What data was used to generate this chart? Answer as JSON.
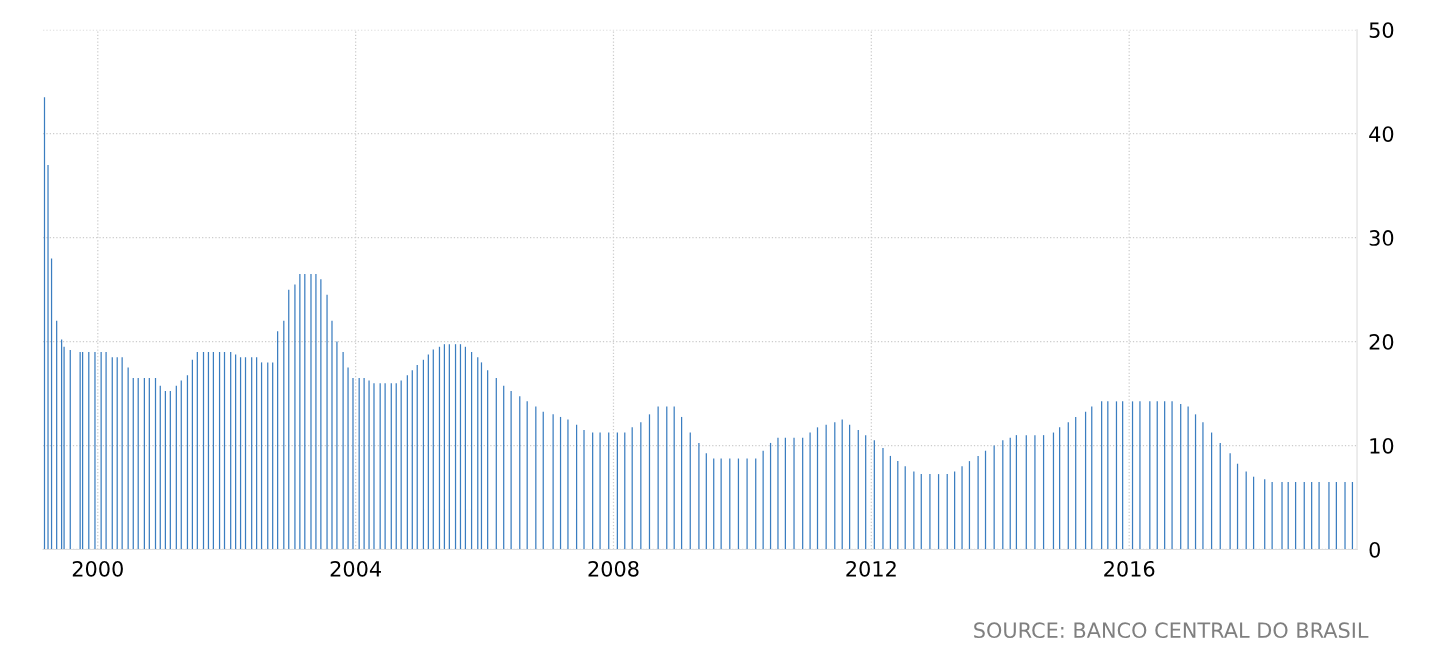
{
  "chart_data": {
    "type": "bar",
    "color": "#3a7dc0",
    "x": [
      "1999-03-05",
      "1999-03-25",
      "1999-04-14",
      "1999-05-13",
      "1999-06-10",
      "1999-06-24",
      "1999-07-29",
      "1999-09-23",
      "1999-10-07",
      "1999-11-11",
      "1999-12-16",
      "2000-01-20",
      "2000-02-17",
      "2000-03-23",
      "2000-04-20",
      "2000-05-18",
      "2000-06-21",
      "2000-07-20",
      "2000-08-17",
      "2000-09-21",
      "2000-10-19",
      "2000-11-23",
      "2000-12-20",
      "2001-01-18",
      "2001-02-15",
      "2001-03-21",
      "2001-04-18",
      "2001-05-23",
      "2001-06-20",
      "2001-07-18",
      "2001-08-22",
      "2001-09-19",
      "2001-10-17",
      "2001-11-21",
      "2001-12-19",
      "2002-01-23",
      "2002-02-20",
      "2002-03-20",
      "2002-04-17",
      "2002-05-22",
      "2002-06-19",
      "2002-07-17",
      "2002-08-21",
      "2002-09-18",
      "2002-10-16",
      "2002-11-20",
      "2002-12-18",
      "2003-01-22",
      "2003-02-19",
      "2003-03-19",
      "2003-04-23",
      "2003-05-21",
      "2003-06-18",
      "2003-07-23",
      "2003-08-20",
      "2003-09-17",
      "2003-10-22",
      "2003-11-19",
      "2003-12-17",
      "2004-01-21",
      "2004-02-18",
      "2004-03-17",
      "2004-04-14",
      "2004-05-19",
      "2004-06-16",
      "2004-07-21",
      "2004-08-18",
      "2004-09-15",
      "2004-10-20",
      "2004-11-17",
      "2004-12-15",
      "2005-01-19",
      "2005-02-16",
      "2005-03-16",
      "2005-04-20",
      "2005-05-18",
      "2005-06-15",
      "2005-07-20",
      "2005-08-17",
      "2005-09-14",
      "2005-10-19",
      "2005-11-23",
      "2005-12-14",
      "2006-01-18",
      "2006-03-08",
      "2006-04-19",
      "2006-05-31",
      "2006-07-19",
      "2006-08-30",
      "2006-10-18",
      "2006-11-29",
      "2007-01-24",
      "2007-03-07",
      "2007-04-18",
      "2007-06-06",
      "2007-07-18",
      "2007-09-05",
      "2007-10-17",
      "2007-12-05",
      "2008-01-23",
      "2008-03-05",
      "2008-04-16",
      "2008-06-04",
      "2008-07-23",
      "2008-09-10",
      "2008-10-29",
      "2008-12-10",
      "2009-01-21",
      "2009-03-11",
      "2009-04-29",
      "2009-06-10",
      "2009-07-22",
      "2009-09-02",
      "2009-10-21",
      "2009-12-09",
      "2010-01-27",
      "2010-03-17",
      "2010-04-28",
      "2010-06-09",
      "2010-07-21",
      "2010-09-01",
      "2010-10-20",
      "2010-12-08",
      "2011-01-19",
      "2011-03-02",
      "2011-04-20",
      "2011-06-08",
      "2011-07-20",
      "2011-08-31",
      "2011-10-19",
      "2011-11-30",
      "2012-01-18",
      "2012-03-07",
      "2012-04-18",
      "2012-05-30",
      "2012-07-11",
      "2012-08-29",
      "2012-10-10",
      "2012-11-28",
      "2013-01-16",
      "2013-03-06",
      "2013-04-17",
      "2013-05-29",
      "2013-07-10",
      "2013-08-28",
      "2013-10-09",
      "2013-11-27",
      "2014-01-15",
      "2014-02-26",
      "2014-04-02",
      "2014-05-28",
      "2014-07-16",
      "2014-09-03",
      "2014-10-29",
      "2014-12-03",
      "2015-01-21",
      "2015-03-04",
      "2015-04-29",
      "2015-06-03",
      "2015-07-29",
      "2015-09-02",
      "2015-10-21",
      "2015-11-25",
      "2016-01-20",
      "2016-03-02",
      "2016-04-27",
      "2016-06-08",
      "2016-07-20",
      "2016-08-31",
      "2016-10-19",
      "2016-11-30",
      "2017-01-11",
      "2017-02-22",
      "2017-04-12",
      "2017-05-31",
      "2017-07-26",
      "2017-09-06",
      "2017-10-25",
      "2017-12-06",
      "2018-02-07",
      "2018-03-21",
      "2018-05-16",
      "2018-06-20",
      "2018-08-01",
      "2018-09-19",
      "2018-10-31",
      "2018-12-12",
      "2019-02-06",
      "2019-03-20",
      "2019-05-08",
      "2019-06-19"
    ],
    "values": [
      43.5,
      37,
      28,
      22,
      20.2,
      19.5,
      19.2,
      19,
      19,
      19,
      19,
      19,
      19,
      18.5,
      18.5,
      18.5,
      17.5,
      16.5,
      16.5,
      16.5,
      16.5,
      16.5,
      15.75,
      15.25,
      15.25,
      15.75,
      16.25,
      16.75,
      18.25,
      19,
      19,
      19,
      19,
      19,
      19,
      19,
      18.75,
      18.5,
      18.5,
      18.5,
      18.5,
      18,
      18,
      18,
      21,
      22,
      25,
      25.5,
      26.5,
      26.5,
      26.5,
      26.5,
      26,
      24.5,
      22,
      20,
      19,
      17.5,
      16.5,
      16.5,
      16.5,
      16.25,
      16,
      16,
      16,
      16,
      16,
      16.25,
      16.75,
      17.25,
      17.75,
      18.25,
      18.75,
      19.25,
      19.5,
      19.75,
      19.75,
      19.75,
      19.75,
      19.5,
      19,
      18.5,
      18,
      17.25,
      16.5,
      15.75,
      15.25,
      14.75,
      14.25,
      13.75,
      13.25,
      13,
      12.75,
      12.5,
      12,
      11.5,
      11.25,
      11.25,
      11.25,
      11.25,
      11.25,
      11.75,
      12.25,
      13,
      13.75,
      13.75,
      13.75,
      12.75,
      11.25,
      10.25,
      9.25,
      8.75,
      8.75,
      8.75,
      8.75,
      8.75,
      8.75,
      9.5,
      10.25,
      10.75,
      10.75,
      10.75,
      10.75,
      11.25,
      11.75,
      12,
      12.25,
      12.5,
      12,
      11.5,
      11,
      10.5,
      9.75,
      9,
      8.5,
      8,
      7.5,
      7.25,
      7.25,
      7.25,
      7.25,
      7.5,
      8,
      8.5,
      9,
      9.5,
      10,
      10.5,
      10.75,
      11,
      11,
      11,
      11,
      11.25,
      11.75,
      12.25,
      12.75,
      13.25,
      13.75,
      14.25,
      14.25,
      14.25,
      14.25,
      14.25,
      14.25,
      14.25,
      14.25,
      14.25,
      14.25,
      14,
      13.75,
      13,
      12.25,
      11.25,
      10.25,
      9.25,
      8.25,
      7.5,
      7,
      6.75,
      6.5,
      6.5,
      6.5,
      6.5,
      6.5,
      6.5,
      6.5,
      6.5,
      6.5,
      6.5,
      6.5
    ],
    "xlim": [
      "1999-02-25",
      "2019-07-15"
    ],
    "xticks": [
      {
        "value": "2000-01-01",
        "label": "2000"
      },
      {
        "value": "2004-01-01",
        "label": "2004"
      },
      {
        "value": "2008-01-01",
        "label": "2008"
      },
      {
        "value": "2012-01-01",
        "label": "2012"
      },
      {
        "value": "2016-01-01",
        "label": "2016"
      }
    ],
    "ylim": [
      0,
      50
    ],
    "yticks": [
      0,
      10,
      20,
      30,
      40,
      50
    ],
    "grid": true,
    "legend": false,
    "annotations": [
      "SOURCE: BANCO CENTRAL DO BRASIL"
    ]
  }
}
